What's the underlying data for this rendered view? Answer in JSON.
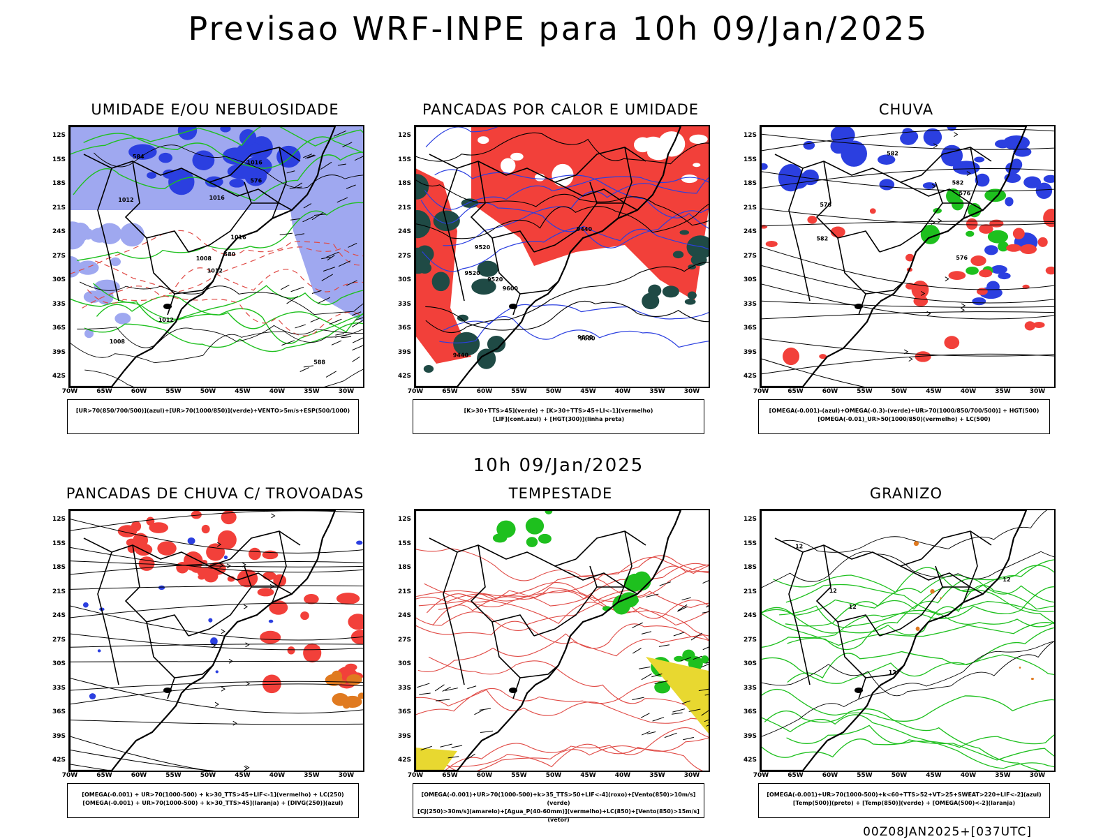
{
  "main_title": "Previsao WRF-INPE  para 10h 09/Jan/2025",
  "mid_title": "10h 09/Jan/2025",
  "footer": "00Z08JAN2025+[037UTC]",
  "lat_labels": [
    "12S",
    "15S",
    "18S",
    "21S",
    "24S",
    "27S",
    "30S",
    "33S",
    "36S",
    "39S",
    "42S"
  ],
  "lon_labels": [
    "70W",
    "65W",
    "60W",
    "55W",
    "50W",
    "45W",
    "40W",
    "35W",
    "30W"
  ],
  "panels": [
    {
      "title": "UMIDADE E/OU NEBULOSIDADE",
      "legend_lines": [
        "[UR>70(850/700/500)](azul)+[UR>70(1000/850)](verde)+VENTO>5m/s+ESP(500/1000)"
      ],
      "contour_labels": [
        "1012",
        "1012",
        "1008",
        "1008",
        "1016",
        "1012",
        "1016",
        "1016",
        "576",
        "580",
        "584",
        "588"
      ]
    },
    {
      "title": "PANCADAS POR CALOR E UMIDADE",
      "legend_lines": [
        "[K>30+TTS>45](verde) + [K>30+TTS>45+LI<-1](vermelho)",
        "[LIF](cont.azul) + [HGT(300)](linha preta)"
      ],
      "contour_labels": [
        "9600",
        "9600",
        "9600",
        "9520",
        "9520",
        "9520",
        "9440",
        "9440"
      ]
    },
    {
      "title": "CHUVA",
      "legend_lines": [
        "[OMEGA(-0.001)-(azul)+OMEGA(-0.3)-(verde)+UR>70(1000/850/700/500)] + HGT(500)",
        "[OMEGA(-0.01)_UR>50(1000/850)(vermelho) + LC(500)"
      ],
      "contour_labels": [
        "582",
        "582",
        "576",
        "576",
        "576",
        "582"
      ]
    },
    {
      "title": "PANCADAS DE CHUVA C/ TROVOADAS",
      "legend_lines": [
        "[OMEGA(-0.001) + UR>70(1000-500) + k>30_TTS>45+LIF<-1](vermelho) + LC(250)",
        "[OMEGA(-0.001) + UR>70(1000-500) + k>30_TTS>45](laranja) + [DIVG(250)](azul)"
      ],
      "contour_labels": []
    },
    {
      "title": "TEMPESTADE",
      "legend_lines": [
        "[OMEGA(-0.001)+UR>70(1000-500)+k>35_TTS>50+LIF<-4](roxo)+[Vento(850)>10m/s](verde)",
        "[CJ(250)>30m/s](amarelo)+[Agua_P(40-60mm)](vermelho)+LC(850)+[Vento(850)>15m/s](vetor)"
      ],
      "contour_labels": []
    },
    {
      "title": "GRANIZO",
      "legend_lines": [
        "[OMEGA(-0.001)+UR>70(1000-500)+k<60+TTS>52+VT>25+SWEAT>220+LIF<-2](azul)",
        "[Temp(500)](preto) + [Temp(850)](verde) + [OMEGA(500)<-2](laranja)"
      ],
      "contour_labels": [
        "12",
        "12",
        "12",
        "12",
        "12"
      ]
    }
  ],
  "colors": {
    "blue": "#2b3fe0",
    "light_blue": "#9fa8f0",
    "green": "#1ec01e",
    "red": "#f2403a",
    "dark_green": "#1f4a45",
    "orange": "#e07a20",
    "yellow": "#e8d830",
    "purple": "#7a2a9a",
    "contour_red": "#e04a45"
  }
}
